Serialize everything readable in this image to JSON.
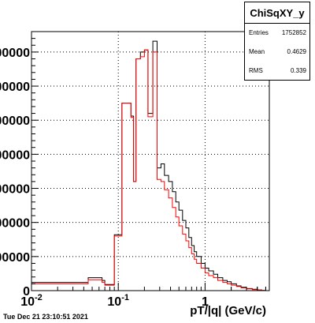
{
  "stats": {
    "title": "ChiSqXY_y",
    "rows": [
      {
        "label": "Entries",
        "value": "1752852"
      },
      {
        "label": "Mean",
        "value": "0.4629"
      },
      {
        "label": "RMS",
        "value": "0.339"
      }
    ]
  },
  "timestamp": "Tue Dec 21 23:10:51 2021",
  "chart_data": {
    "type": "line",
    "title": "",
    "xlabel": "pT/|q| (GeV/c)",
    "ylabel": "",
    "xscale": "log",
    "xlim": [
      0.01,
      5.5
    ],
    "ylim": [
      0,
      380000
    ],
    "grid": true,
    "legend": "none",
    "x_ticks": [
      {
        "value": 0.01,
        "label": "10^-2"
      },
      {
        "value": 0.1,
        "label": "10^-1"
      },
      {
        "value": 1,
        "label": "1"
      }
    ],
    "y_ticks": [
      {
        "value": 0,
        "label": "0"
      },
      {
        "value": 50000,
        "label": "00000"
      },
      {
        "value": 100000,
        "label": "00000"
      },
      {
        "value": 150000,
        "label": "00000"
      },
      {
        "value": 200000,
        "label": "00000"
      },
      {
        "value": 250000,
        "label": "00000"
      },
      {
        "value": 300000,
        "label": "00000"
      },
      {
        "value": 350000,
        "label": "00000"
      }
    ],
    "series": [
      {
        "color": "#000000",
        "x": [
          0.01,
          0.04,
          0.045,
          0.055,
          0.065,
          0.07,
          0.08,
          0.09,
          0.1,
          0.11,
          0.13,
          0.14,
          0.15,
          0.16,
          0.18,
          0.2,
          0.22,
          0.25,
          0.28,
          0.31,
          0.34,
          0.38,
          0.42,
          0.46,
          0.5,
          0.55,
          0.6,
          0.65,
          0.7,
          0.75,
          0.8,
          0.9,
          1.0,
          1.1,
          1.25,
          1.4,
          1.6,
          1.8,
          2.0,
          2.3,
          2.6,
          3.0,
          3.5,
          4.0,
          4.5,
          5.0
        ],
        "y": [
          12000,
          12000,
          19000,
          19000,
          15000,
          9000,
          9000,
          82000,
          82000,
          275000,
          275000,
          256000,
          160000,
          340000,
          350000,
          353000,
          260000,
          366000,
          180000,
          186000,
          169000,
          160000,
          145000,
          130000,
          118000,
          103000,
          92000,
          78000,
          66000,
          57000,
          50000,
          40000,
          33000,
          29000,
          24000,
          19000,
          15000,
          13000,
          10000,
          7000,
          5000,
          3000,
          2000,
          1000,
          300,
          0
        ]
      },
      {
        "color": "#ff0000",
        "x": [
          0.01,
          0.04,
          0.045,
          0.055,
          0.065,
          0.07,
          0.08,
          0.09,
          0.1,
          0.11,
          0.13,
          0.14,
          0.15,
          0.16,
          0.18,
          0.2,
          0.22,
          0.25,
          0.28,
          0.31,
          0.34,
          0.38,
          0.42,
          0.46,
          0.5,
          0.55,
          0.6,
          0.65,
          0.7,
          0.75,
          0.8,
          0.9,
          1.0,
          1.1,
          1.25,
          1.4,
          1.6,
          1.8,
          2.0,
          2.3,
          2.6,
          3.0,
          3.5,
          4.0,
          4.5,
          5.0
        ],
        "y": [
          10000,
          10000,
          16000,
          16000,
          12000,
          8000,
          8000,
          80000,
          80000,
          275000,
          275000,
          254000,
          160000,
          340000,
          343000,
          353000,
          255000,
          350000,
          163000,
          160000,
          148000,
          136000,
          122000,
          108000,
          95000,
          83000,
          73000,
          63000,
          54000,
          46000,
          40000,
          33000,
          26000,
          22000,
          19000,
          15000,
          12000,
          10000,
          8000,
          6000,
          4000,
          2500,
          1500,
          800,
          200,
          0
        ]
      }
    ]
  }
}
